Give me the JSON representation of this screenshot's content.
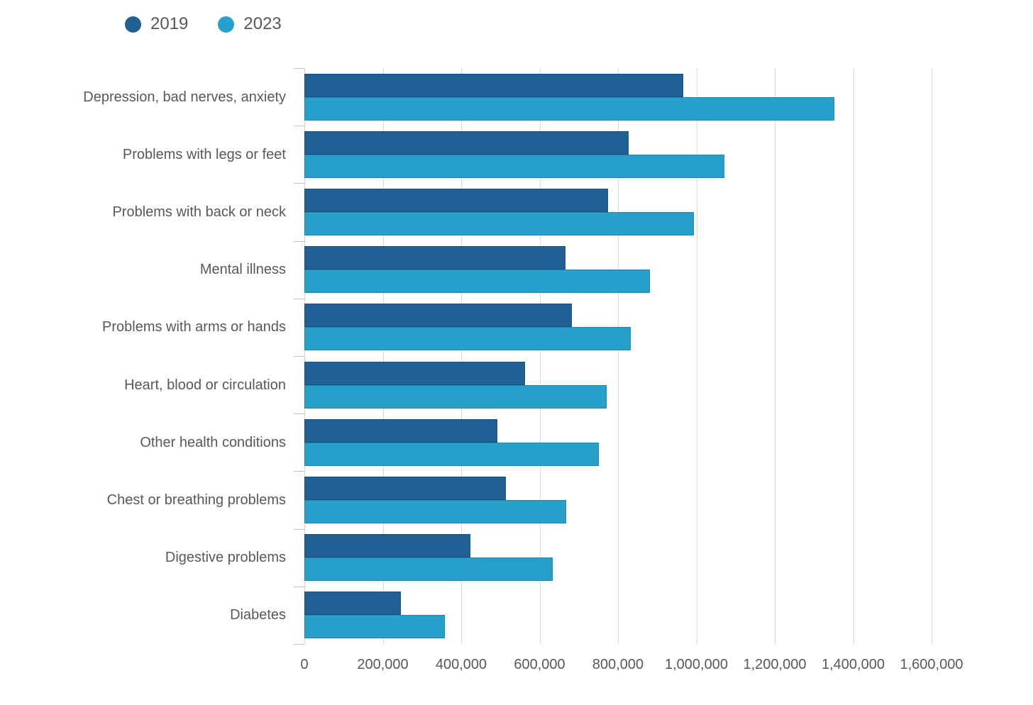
{
  "legend": {
    "position": "top-left"
  },
  "colors": {
    "series_2019": "#206095",
    "series_2019_border": "#17507e",
    "series_2023": "#27a0cc",
    "series_2023_border": "#1e87ae",
    "gridline": "#d9d9d9",
    "axis_tick": "#b6c4e4",
    "text": "#58585a",
    "background": "#ffffff"
  },
  "chart_data": {
    "type": "bar",
    "orientation": "horizontal",
    "title": "",
    "xlabel": "",
    "ylabel": "",
    "grid": true,
    "legend_position": "top-left",
    "categories": [
      "Depression, bad nerves, anxiety",
      "Problems with legs or feet",
      "Problems with back or neck",
      "Mental illness",
      "Problems with arms or hands",
      "Heart, blood or circulation",
      "Other health conditions",
      "Chest or breathing problems",
      "Digestive problems",
      "Diabetes"
    ],
    "series": [
      {
        "name": "2019",
        "color": "#206095",
        "border_color": "#17507e",
        "values": [
          966000,
          827000,
          774000,
          666000,
          682000,
          562000,
          492000,
          514000,
          423000,
          247000
        ]
      },
      {
        "name": "2023",
        "color": "#27a0cc",
        "border_color": "#1e87ae",
        "values": [
          1352000,
          1072000,
          993000,
          881000,
          833000,
          771000,
          752000,
          668000,
          633000,
          359000
        ]
      }
    ],
    "xlim": [
      0,
      1600000
    ],
    "xtick_step": 200000,
    "xtick_labels": [
      "0",
      "200,000",
      "400,000",
      "600,000",
      "800,000",
      "1,000,000",
      "1,200,000",
      "1,400,000",
      "1,600,000"
    ]
  }
}
